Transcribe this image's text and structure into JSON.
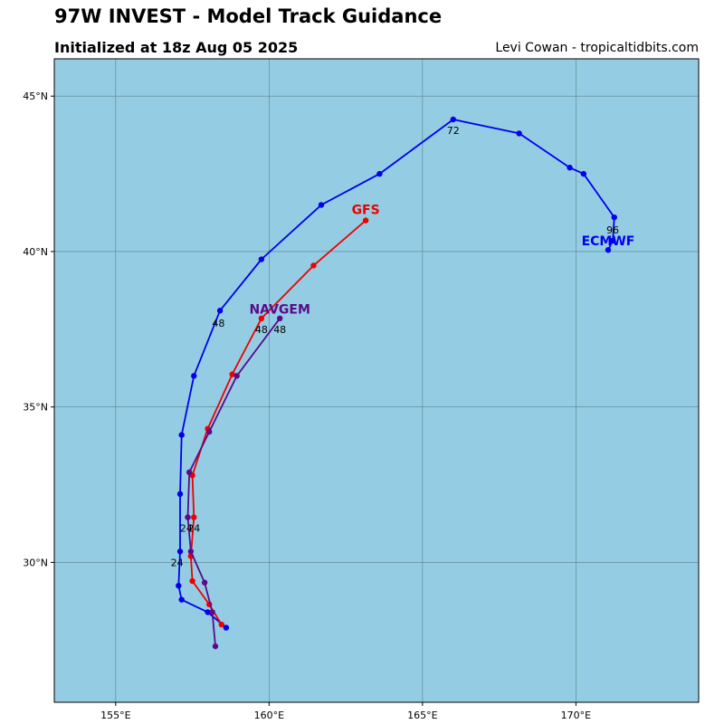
{
  "header": {
    "title": "97W INVEST - Model Track Guidance",
    "subtitle": "Initialized at 18z Aug 05 2025",
    "credit": "Levi Cowan - tropicaltidbits.com"
  },
  "colors": {
    "ocean": "#94cde3",
    "grid": "#5a7f8c",
    "frame": "#000000"
  },
  "map_extent": {
    "lon": [
      153,
      174
    ],
    "lat": [
      25.5,
      46.2
    ]
  },
  "axes": {
    "lon_ticks": [
      {
        "value": 155,
        "label": "155°E"
      },
      {
        "value": 160,
        "label": "160°E"
      },
      {
        "value": 165,
        "label": "165°E"
      },
      {
        "value": 170,
        "label": "170°E"
      }
    ],
    "lat_ticks": [
      {
        "value": 30,
        "label": "30°N"
      },
      {
        "value": 35,
        "label": "35°N"
      },
      {
        "value": 40,
        "label": "40°N"
      },
      {
        "value": 45,
        "label": "45°N"
      }
    ]
  },
  "tracks": [
    {
      "name": "ECMWF",
      "color": "#0000ee",
      "points": [
        [
          158.6,
          27.9
        ],
        [
          158.0,
          28.4
        ],
        [
          157.15,
          28.8
        ],
        [
          157.05,
          29.25
        ],
        [
          157.1,
          30.35
        ],
        [
          157.1,
          32.2
        ],
        [
          157.15,
          34.1
        ],
        [
          157.55,
          36.0
        ],
        [
          158.4,
          38.1
        ],
        [
          159.75,
          39.75
        ],
        [
          161.7,
          41.5
        ],
        [
          163.6,
          42.5
        ],
        [
          166.0,
          44.25
        ],
        [
          168.15,
          43.8
        ],
        [
          169.8,
          42.7
        ],
        [
          170.25,
          42.5
        ],
        [
          171.25,
          41.1
        ],
        [
          171.2,
          40.35
        ],
        [
          171.05,
          40.05
        ]
      ],
      "hour_labels": [
        {
          "text": "24",
          "lon": 157.0,
          "lat": 30.0
        },
        {
          "text": "48",
          "lon": 158.35,
          "lat": 37.7
        },
        {
          "text": "72",
          "lon": 166.0,
          "lat": 43.9
        },
        {
          "text": "96",
          "lon": 171.2,
          "lat": 40.7
        }
      ],
      "label": {
        "text": "ECMWF",
        "lon": 171.05,
        "lat": 40.35
      }
    },
    {
      "name": "GFS",
      "color": "#ee0000",
      "points": [
        [
          158.45,
          28.0
        ],
        [
          158.05,
          28.65
        ],
        [
          157.5,
          29.4
        ],
        [
          157.45,
          30.2
        ],
        [
          157.55,
          31.45
        ],
        [
          157.5,
          32.8
        ],
        [
          158.0,
          34.3
        ],
        [
          158.8,
          36.05
        ],
        [
          159.75,
          37.85
        ],
        [
          161.45,
          39.55
        ],
        [
          163.15,
          41.0
        ]
      ],
      "hour_labels": [
        {
          "text": "24",
          "lon": 157.55,
          "lat": 31.1
        },
        {
          "text": "48",
          "lon": 159.75,
          "lat": 37.5
        }
      ],
      "label": {
        "text": "GFS",
        "lon": 163.15,
        "lat": 41.35
      }
    },
    {
      "name": "NAVGEM",
      "color": "#5a0a8a",
      "points": [
        [
          158.25,
          27.3
        ],
        [
          158.15,
          28.4
        ],
        [
          157.9,
          29.35
        ],
        [
          157.45,
          30.35
        ],
        [
          157.35,
          31.45
        ],
        [
          157.4,
          32.9
        ],
        [
          158.05,
          34.2
        ],
        [
          158.95,
          36.0
        ],
        [
          160.35,
          37.85
        ]
      ],
      "hour_labels": [
        {
          "text": "24",
          "lon": 157.3,
          "lat": 31.1
        },
        {
          "text": "48",
          "lon": 160.35,
          "lat": 37.5
        }
      ],
      "label": {
        "text": "NAVGEM",
        "lon": 160.35,
        "lat": 38.15
      }
    }
  ]
}
